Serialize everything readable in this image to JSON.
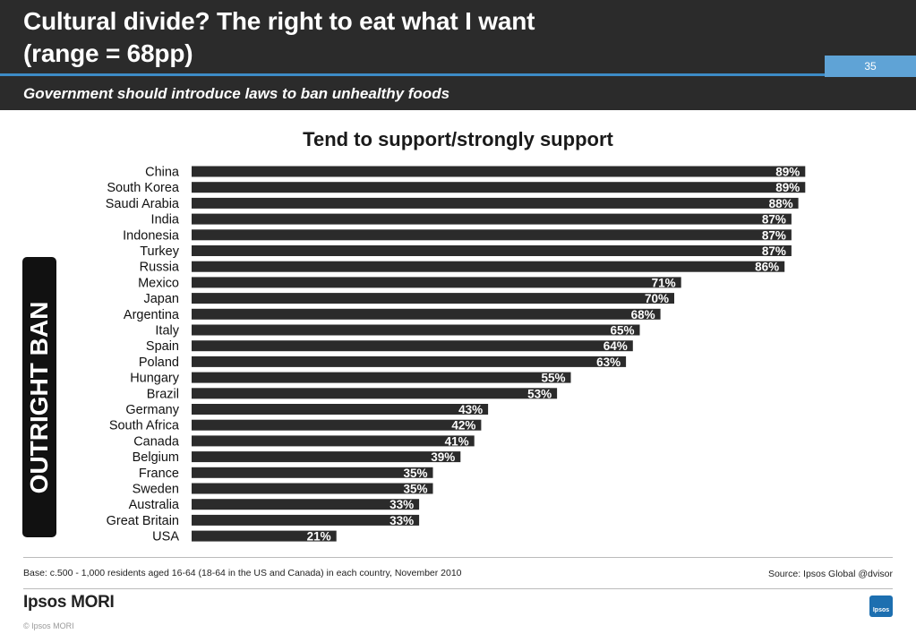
{
  "header": {
    "title_line1": "Cultural divide?  The right to eat what I want",
    "title_line2": "(range = 68pp)",
    "page_number": "35",
    "subtitle": "Government should introduce laws to ban unhealthy foods"
  },
  "side_label": "OUTRIGHT BAN",
  "footer": {
    "base_note": "Base: c.500 - 1,000 residents aged 16-64 (18-64 in the US and Canada) in each country, November 2010",
    "source": "Source: Ipsos Global @dvisor",
    "logo_text": "Ipsos MORI",
    "copyright": "© Ipsos MORI",
    "badge_text": "Ipsos"
  },
  "colors": {
    "header_bg": "#2b2b2b",
    "accent_blue": "#3d8cc7",
    "bar": "#2b2b2b"
  },
  "chart_data": {
    "type": "bar",
    "orientation": "horizontal",
    "title": "Tend to support/strongly support",
    "categories": [
      "China",
      "South Korea",
      "Saudi Arabia",
      "India",
      "Indonesia",
      "Turkey",
      "Russia",
      "Mexico",
      "Japan",
      "Argentina",
      "Italy",
      "Spain",
      "Poland",
      "Hungary",
      "Brazil",
      "Germany",
      "South Africa",
      "Canada",
      "Belgium",
      "France",
      "Sweden",
      "Australia",
      "Great Britain",
      "USA"
    ],
    "values": [
      89,
      89,
      88,
      87,
      87,
      87,
      86,
      71,
      70,
      68,
      65,
      64,
      63,
      55,
      53,
      43,
      42,
      41,
      39,
      35,
      35,
      33,
      33,
      21
    ],
    "labels": [
      "89%",
      "89%",
      "88%",
      "87%",
      "87%",
      "87%",
      "86%",
      "71%",
      "70%",
      "68%",
      "65%",
      "64%",
      "63%",
      "55%",
      "53%",
      "43%",
      "42%",
      "41%",
      "39%",
      "35%",
      "35%",
      "33%",
      "33%",
      "21%"
    ],
    "xlim": [
      0,
      100
    ],
    "grid": false,
    "legend": "none"
  }
}
